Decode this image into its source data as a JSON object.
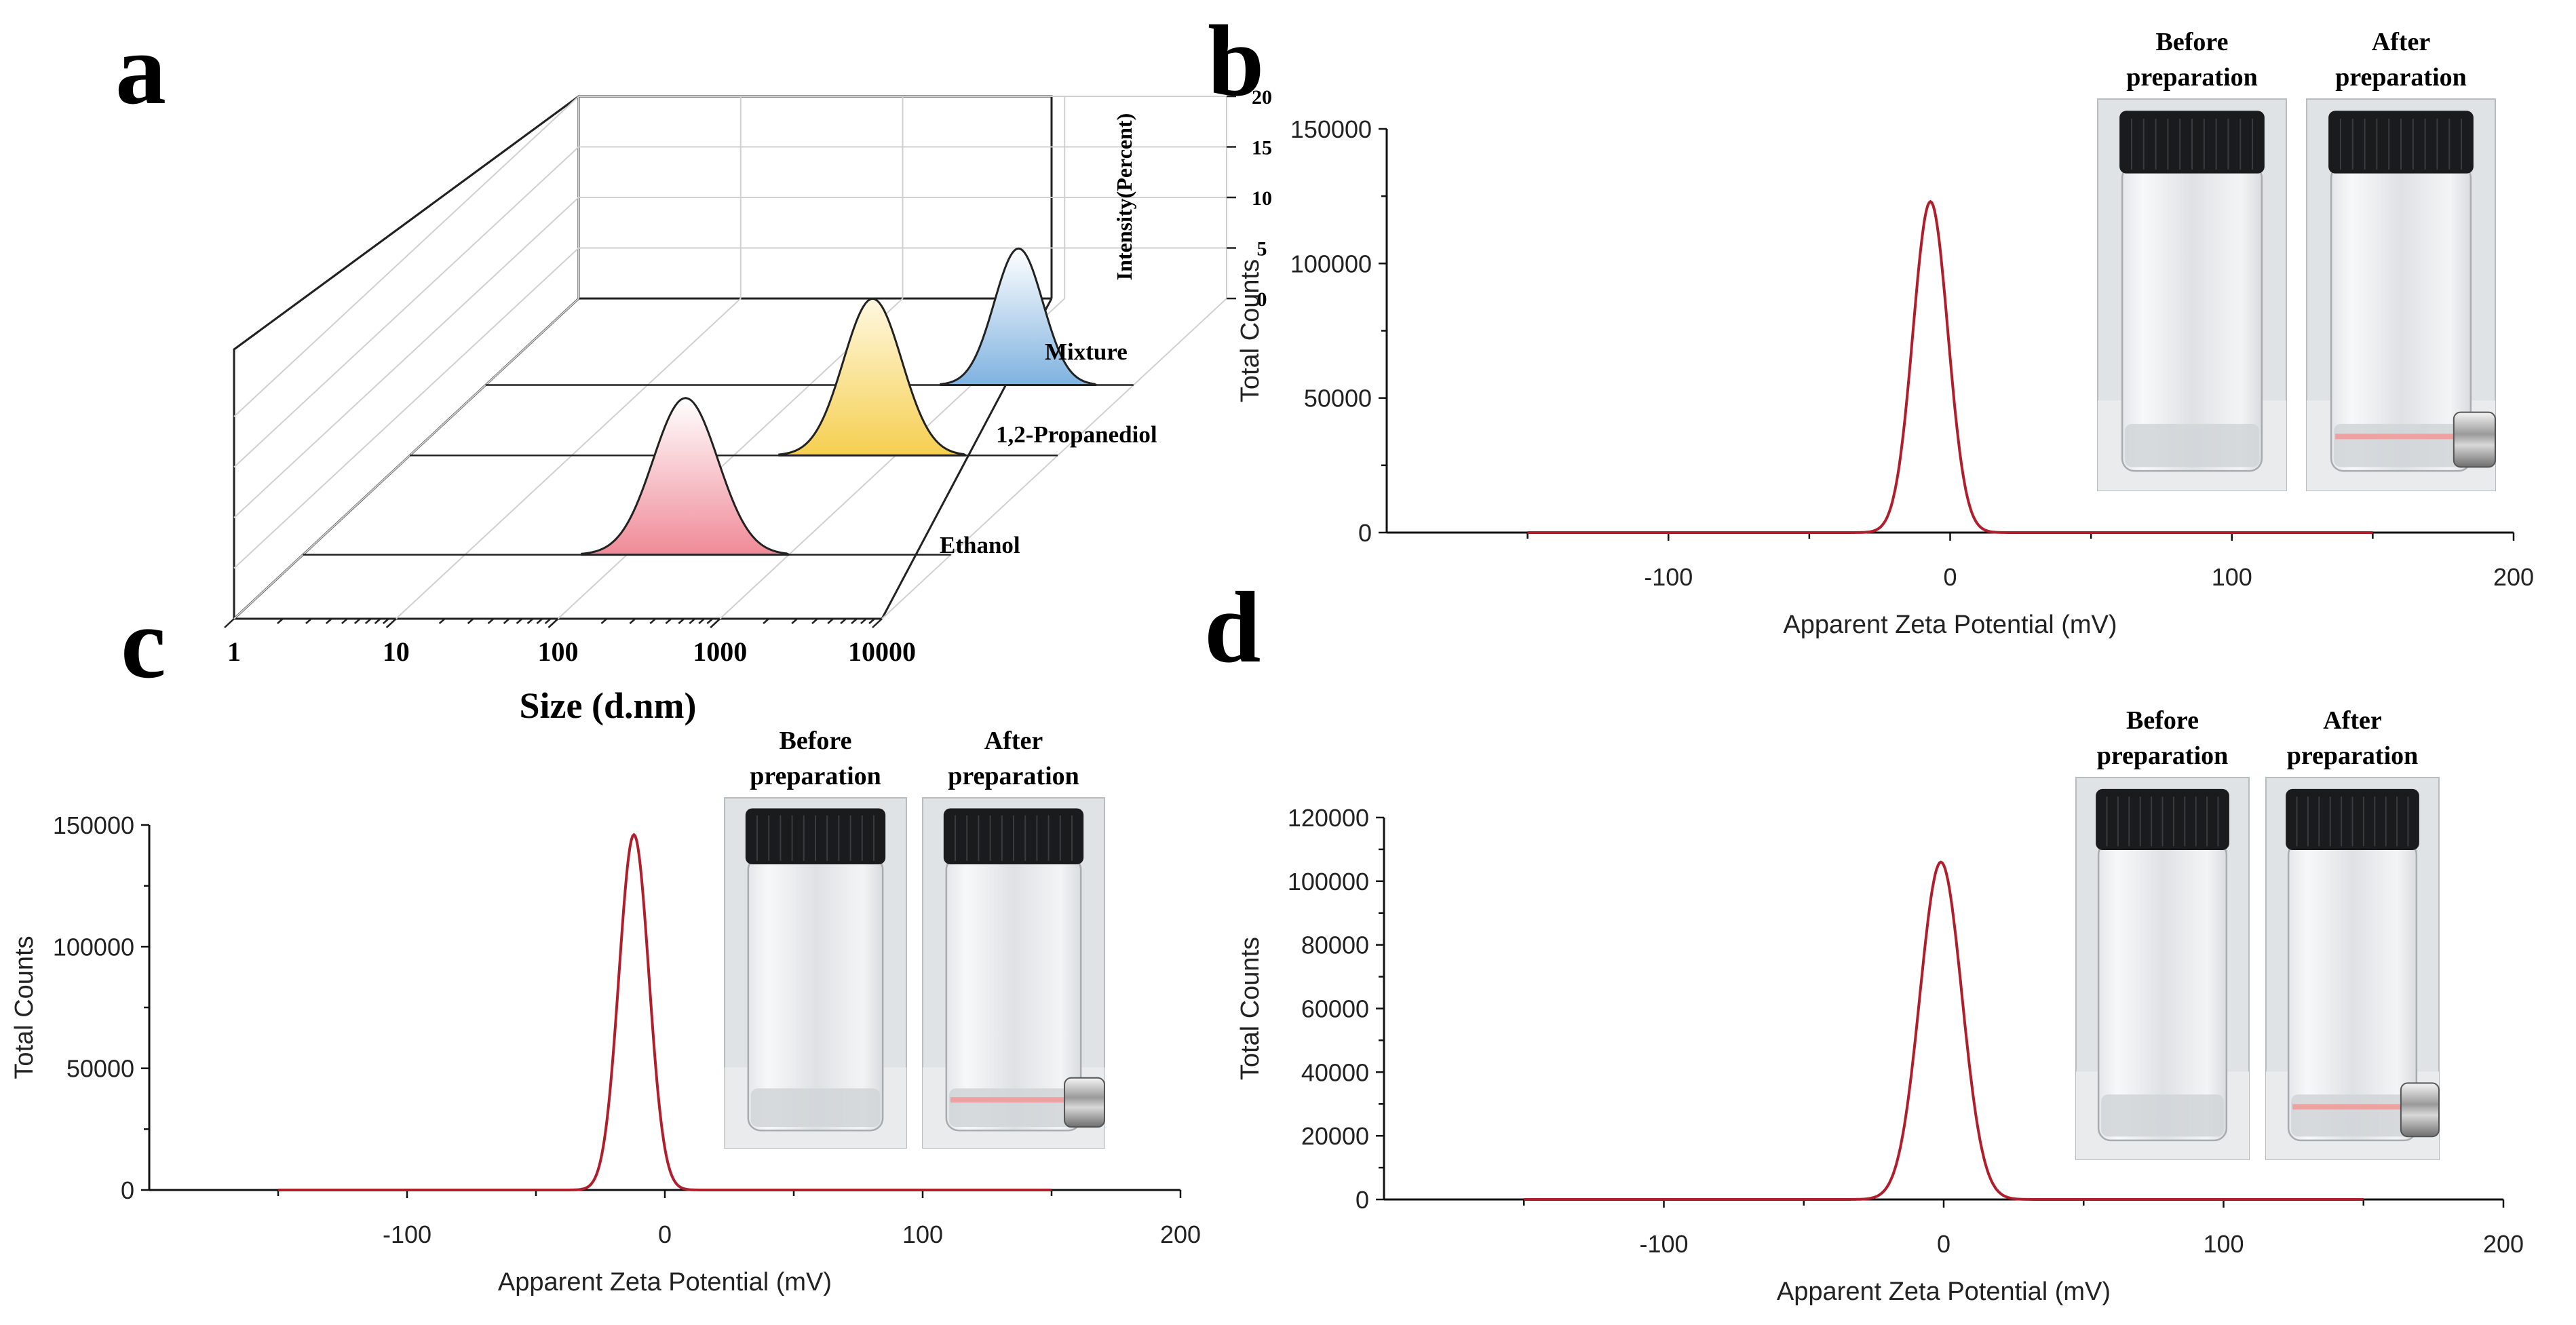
{
  "chart_data": [
    {
      "panel": "a",
      "type": "line",
      "subtype": "3d-waterfall",
      "title": "",
      "xlabel": "Size (d.nm)",
      "zlabel": "Intensity(Percent)",
      "x_scale": "log",
      "xlim": [
        1,
        10000
      ],
      "x_ticks": [
        "1",
        "10",
        "100",
        "1000",
        "10000"
      ],
      "zlim": [
        0,
        20
      ],
      "z_ticks": [
        "0",
        "5",
        "10",
        "15",
        "20"
      ],
      "fill_colors": {
        "Ethanol": "#f08a98",
        "1,2-Propanediol": "#f5cf50",
        "Mixture": "#7fb2e0"
      },
      "series": [
        {
          "name": "Ethanol",
          "peak_x": 230,
          "peak_y": 15.5,
          "sigma_log10": 0.2
        },
        {
          "name": "1,2-Propanediol",
          "peak_x": 720,
          "peak_y": 15.5,
          "sigma_log10": 0.18
        },
        {
          "name": "Mixture",
          "peak_x": 1950,
          "peak_y": 13.5,
          "sigma_log10": 0.15
        }
      ]
    },
    {
      "panel": "b",
      "type": "line",
      "title": "",
      "xlabel": "Apparent Zeta Potential (mV)",
      "ylabel": "Total Counts",
      "xlim": [
        -200,
        200
      ],
      "x_ticks": [
        "-100",
        "0",
        "100",
        "200"
      ],
      "ylim": [
        0,
        150000
      ],
      "y_ticks": [
        "0",
        "50000",
        "100000",
        "150000"
      ],
      "line_color": "#b01e2c",
      "series": [
        {
          "name": "zeta",
          "peak_x": -7,
          "peak_y": 123000,
          "sigma": 6.2,
          "range": [
            -150,
            150
          ]
        }
      ],
      "inset": {
        "before_label": "Before preparation",
        "after_label": "After preparation"
      }
    },
    {
      "panel": "c",
      "type": "line",
      "title": "",
      "xlabel": "Apparent Zeta Potential (mV)",
      "ylabel": "Total Counts",
      "xlim": [
        -200,
        200
      ],
      "x_ticks": [
        "-100",
        "0",
        "100",
        "200"
      ],
      "ylim": [
        0,
        150000
      ],
      "y_ticks": [
        "0",
        "50000",
        "100000",
        "150000"
      ],
      "line_color": "#b01e2c",
      "series": [
        {
          "name": "zeta",
          "peak_x": -12,
          "peak_y": 146000,
          "sigma": 5.8,
          "range": [
            -150,
            150
          ]
        }
      ],
      "inset": {
        "before_label": "Before preparation",
        "after_label": "After preparation"
      }
    },
    {
      "panel": "d",
      "type": "line",
      "title": "",
      "xlabel": "Apparent Zeta Potential (mV)",
      "ylabel": "Total Counts",
      "xlim": [
        -200,
        200
      ],
      "x_ticks": [
        "-100",
        "0",
        "100",
        "200"
      ],
      "ylim": [
        0,
        120000
      ],
      "y_ticks": [
        "0",
        "20000",
        "40000",
        "60000",
        "80000",
        "100000",
        "120000"
      ],
      "line_color": "#b01e2c",
      "series": [
        {
          "name": "zeta",
          "peak_x": -1,
          "peak_y": 106000,
          "sigma": 7.5,
          "range": [
            -150,
            150
          ]
        }
      ],
      "inset": {
        "before_label": "Before preparation",
        "after_label": "After preparation"
      }
    }
  ],
  "panel_letters": {
    "a": "a",
    "b": "b",
    "c": "c",
    "d": "d"
  },
  "inset_lines": {
    "before_1": "Before",
    "before_2": "preparation",
    "after_1": "After",
    "after_2": "preparation"
  }
}
